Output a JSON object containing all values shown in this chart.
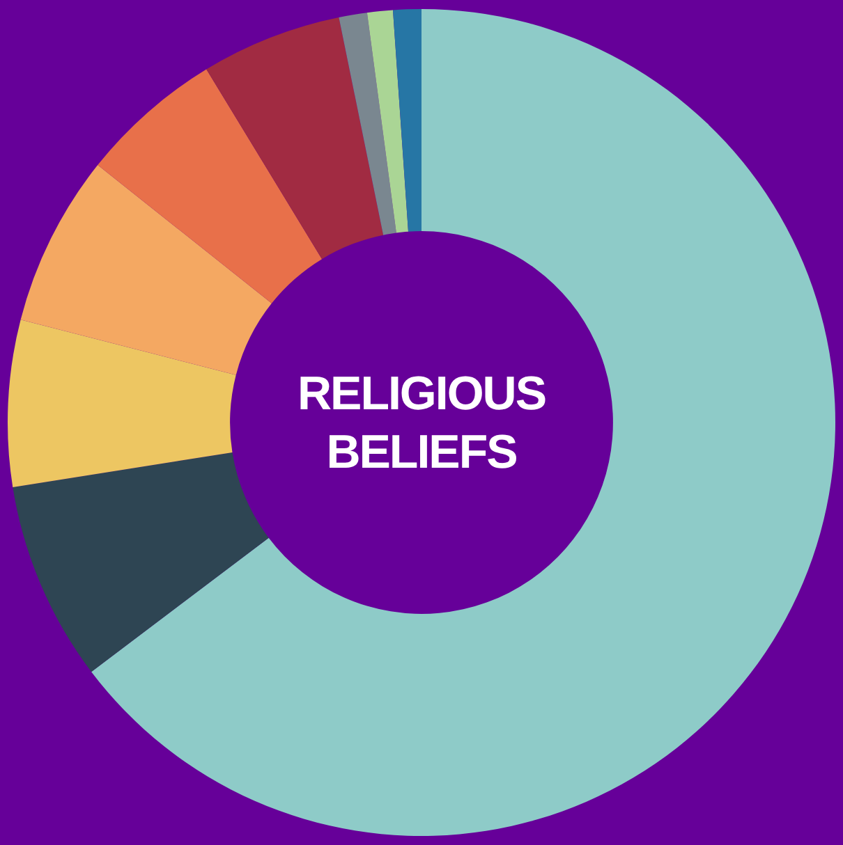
{
  "chart_data": {
    "type": "donut",
    "title": "RELIGIOUS BELIEFS",
    "categories": [
      null,
      null,
      null,
      null,
      null,
      null,
      null,
      null,
      null
    ],
    "values": [
      64.7,
      7.8,
      6.5,
      6.7,
      5.6,
      5.5,
      1.1,
      1.0,
      1.1
    ],
    "colors": [
      "#8ecbc8",
      "#2e4553",
      "#edc662",
      "#f4a862",
      "#e8704a",
      "#a12b42",
      "#7a8790",
      "#aad595",
      "#2676a5"
    ]
  }
}
